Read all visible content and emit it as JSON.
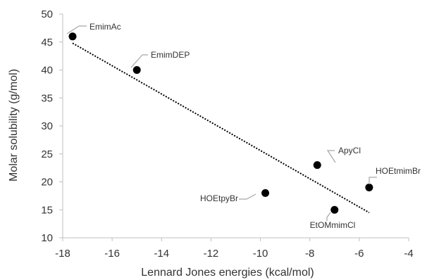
{
  "chart_data": {
    "type": "scatter",
    "xlabel": "Lennard Jones energies (kcal/mol)",
    "ylabel": "Molar solubility (g/mol)",
    "xlim": [
      -18,
      -4
    ],
    "ylim": [
      10,
      50
    ],
    "x_ticks": [
      "-18",
      "-16",
      "-14",
      "-12",
      "-10",
      "-8",
      "-6",
      "-4"
    ],
    "y_ticks": [
      "10",
      "15",
      "20",
      "25",
      "30",
      "35",
      "40",
      "45",
      "50"
    ],
    "grid": false,
    "legend": "none",
    "colors": {
      "points": "#000000",
      "trendline": "#000000",
      "axis": "#bfbfbf",
      "leader": "#a6a6a6",
      "text": "#333333"
    },
    "points": [
      {
        "label": "EmimAc",
        "x": -17.6,
        "y": 46
      },
      {
        "label": "EmimDEP",
        "x": -15.0,
        "y": 40
      },
      {
        "label": "ApyCl",
        "x": -7.7,
        "y": 23
      },
      {
        "label": "HOEtmimBr",
        "x": -5.6,
        "y": 19
      },
      {
        "label": "HOEtpyBr",
        "x": -9.8,
        "y": 18
      },
      {
        "label": "EtOMmimCl",
        "x": -7.0,
        "y": 15
      }
    ],
    "trendline": {
      "type": "linear",
      "from": {
        "x": -17.6,
        "y": 44.8
      },
      "to": {
        "x": -5.6,
        "y": 14.5
      }
    }
  }
}
